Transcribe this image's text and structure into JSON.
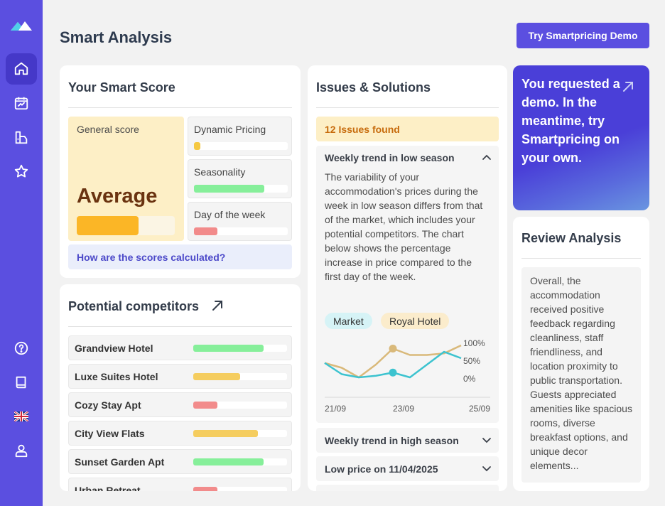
{
  "app": {
    "title": "Smart Analysis"
  },
  "header": {
    "demo_button": "Try Smartpricing Demo"
  },
  "sidebar": {
    "items": [
      {
        "icon": "home-icon",
        "active": true
      },
      {
        "icon": "analytics-icon",
        "active": false
      },
      {
        "icon": "building-icon",
        "active": false
      },
      {
        "icon": "star-icon",
        "active": false
      },
      {
        "icon": "help-icon",
        "active": false
      },
      {
        "icon": "book-icon",
        "active": false
      },
      {
        "icon": "uk-flag-icon",
        "active": false
      },
      {
        "icon": "user-icon",
        "active": false
      }
    ]
  },
  "score": {
    "title": "Your Smart Score",
    "general_label": "General score",
    "general_value": "Average",
    "general_level": 0.63,
    "metrics": [
      {
        "label": "Dynamic Pricing",
        "level": 0.07,
        "color": "#f5c842"
      },
      {
        "label": "Seasonality",
        "level": 0.75,
        "color": "#86ef9a"
      },
      {
        "label": "Day of the week",
        "level": 0.25,
        "color": "#f28b8b"
      }
    ],
    "calc_link": "How are the scores calculated?"
  },
  "competitors": {
    "title": "Potential competitors",
    "items": [
      {
        "name": "Grandview Hotel",
        "level": 0.75,
        "color": "#86ef9a"
      },
      {
        "name": "Luxe Suites Hotel",
        "level": 0.5,
        "color": "#f5cd5f"
      },
      {
        "name": "Cozy Stay Apt",
        "level": 0.26,
        "color": "#f28b8b"
      },
      {
        "name": "City View Flats",
        "level": 0.69,
        "color": "#f5cd5f"
      },
      {
        "name": "Sunset Garden Apt",
        "level": 0.75,
        "color": "#86ef9a"
      },
      {
        "name": "Urban Retreat",
        "level": 0.26,
        "color": "#f28b8b"
      }
    ]
  },
  "issues": {
    "title": "Issues & Solutions",
    "found": "12 Issues found",
    "open_item": {
      "title": "Weekly trend in low season",
      "body": "The variability of your accommodation's prices during the week in low season differs from that of the market, which includes your potential competitors. The chart below shows the percentage increase in price compared to the first day of the week.",
      "legend_market": "Market",
      "legend_hotel": "Royal Hotel"
    },
    "closed_items": [
      {
        "title": "Weekly trend in high season"
      },
      {
        "title": "Low price on 11/04/2025"
      }
    ]
  },
  "chart_data": {
    "type": "line",
    "x_ticks": [
      "21/09",
      "23/09",
      "25/09"
    ],
    "y_ticks": [
      "100%",
      "50%",
      "0%"
    ],
    "ylim": [
      0,
      100
    ],
    "series": [
      {
        "name": "Royal Hotel",
        "color": "#d9b97a",
        "values": [
          45,
          30,
          0,
          40,
          90,
          70,
          70,
          75,
          100
        ]
      },
      {
        "name": "Market",
        "color": "#3cc3cf",
        "values": [
          45,
          10,
          0,
          5,
          15,
          0,
          40,
          80,
          60
        ]
      }
    ],
    "highlight_index": 4
  },
  "demo_card": {
    "text": "You requested a demo. In the meantime, try Smartpricing on your own."
  },
  "review": {
    "title": "Review Analysis",
    "text": "Overall, the accommodation received positive feedback regarding cleanliness, staff friendliness, and location proximity to public transportation. Guests appreciated amenities like spacious rooms, diverse breakfast options, and unique decor elements..."
  }
}
